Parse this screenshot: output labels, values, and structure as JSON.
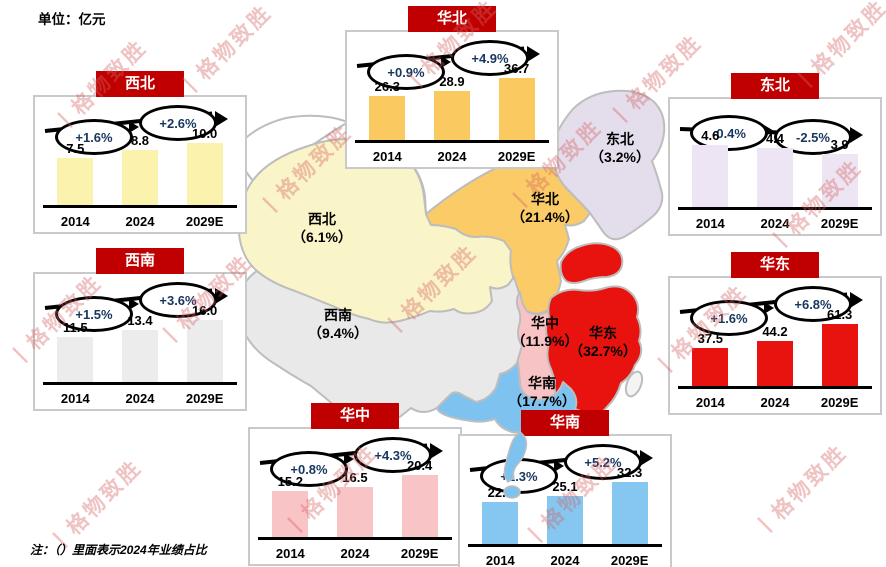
{
  "unit_label": "单位：亿元",
  "note": "注：（）里面表示2024年业绩占比",
  "watermark_text": "格物致胜",
  "colors": {
    "header_red": "#C00000",
    "growth_text_blue": "#17375E",
    "box_border": "#C9C9C9",
    "map_stroke": "#BDBDBD",
    "axis_black": "#000000",
    "watermark_red": "#D96B6B"
  },
  "chart_data": [
    {
      "type": "bar",
      "title": "西北",
      "map_share": "（6.1%）",
      "categories": [
        "2014",
        "2024",
        "2029E"
      ],
      "values": [
        7.5,
        8.8,
        10.0
      ],
      "value_labels": [
        "7.5",
        "8.8",
        "10.0"
      ],
      "growth": [
        "+1.6%",
        "+2.6%"
      ],
      "trend": "up",
      "bar_color": "#FBF2AE",
      "map_color": "#FAF5C8"
    },
    {
      "type": "bar",
      "title": "华北",
      "map_share": "（21.4%）",
      "categories": [
        "2014",
        "2024",
        "2029E"
      ],
      "values": [
        26.3,
        28.9,
        36.7
      ],
      "value_labels": [
        "26.3",
        "28.9",
        "36.7"
      ],
      "growth": [
        "+0.9%",
        "+4.9%"
      ],
      "trend": "up",
      "bar_color": "#FAC95F",
      "map_color": "#FACB66"
    },
    {
      "type": "bar",
      "title": "东北",
      "map_share": "（3.2%）",
      "categories": [
        "2014",
        "2024",
        "2029E"
      ],
      "values": [
        4.6,
        4.4,
        3.9
      ],
      "value_labels": [
        "4.6",
        "4.4",
        "3.9"
      ],
      "growth": [
        "-0.4%",
        "-2.5%"
      ],
      "trend": "down",
      "bar_color": "#EDE5F3",
      "map_color": "#E4DDEC"
    },
    {
      "type": "bar",
      "title": "西南",
      "map_share": "（9.4%）",
      "categories": [
        "2014",
        "2024",
        "2029E"
      ],
      "values": [
        11.5,
        13.4,
        16.0
      ],
      "value_labels": [
        "11.5",
        "13.4",
        "16.0"
      ],
      "growth": [
        "+1.5%",
        "+3.6%"
      ],
      "trend": "up",
      "bar_color": "#ECECEC",
      "map_color": "#E9E9E9"
    },
    {
      "type": "bar",
      "title": "华东",
      "map_share": "（32.7%）",
      "categories": [
        "2014",
        "2024",
        "2029E"
      ],
      "values": [
        37.5,
        44.2,
        61.3
      ],
      "value_labels": [
        "37.5",
        "44.2",
        "61.3"
      ],
      "growth": [
        "+1.6%",
        "+6.8%"
      ],
      "trend": "up",
      "bar_color": "#E8120E",
      "map_color": "#E8120E"
    },
    {
      "type": "bar",
      "title": "华中",
      "map_share": "（11.9%）",
      "categories": [
        "2014",
        "2024",
        "2029E"
      ],
      "values": [
        15.2,
        16.5,
        20.4
      ],
      "value_labels": [
        "15.2",
        "16.5",
        "20.4"
      ],
      "growth": [
        "+0.8%",
        "+4.3%"
      ],
      "trend": "up",
      "bar_color": "#F9C4C6",
      "map_color": "#F8C3C5"
    },
    {
      "type": "bar",
      "title": "华南",
      "map_share": "（17.7%）",
      "categories": [
        "2014",
        "2024",
        "2029E"
      ],
      "values": [
        22.0,
        25.1,
        32.3
      ],
      "value_labels": [
        "22.0",
        "25.1",
        "32.3"
      ],
      "growth": [
        "+1.3%",
        "+5.2%"
      ],
      "trend": "up",
      "bar_color": "#85C7F0",
      "map_color": "#7EC3F0"
    }
  ]
}
